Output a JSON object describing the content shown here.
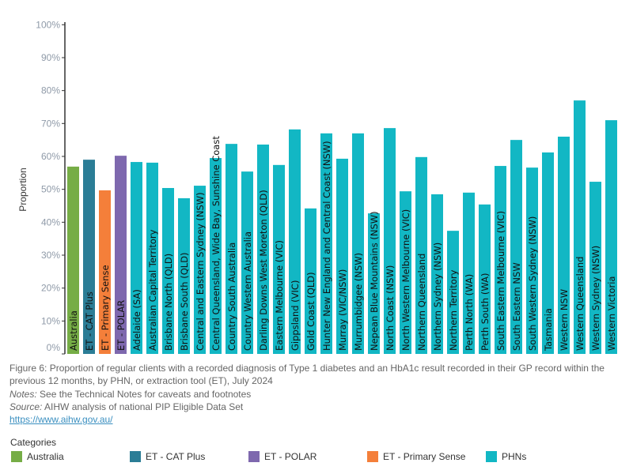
{
  "chart_data": {
    "type": "bar",
    "ylabel": "Proportion",
    "ylim": [
      0,
      100
    ],
    "yticks": [
      "0%",
      "10%",
      "20%",
      "30%",
      "40%",
      "50%",
      "60%",
      "70%",
      "80%",
      "90%",
      "100%"
    ],
    "grid": false,
    "legend_position": "bottom-left",
    "categories": [
      "Australia",
      "ET - CAT Plus",
      "ET - Primary Sense",
      "ET - POLAR",
      "Adelaide (SA)",
      "Australian Capital Territory",
      "Brisbane North (QLD)",
      "Brisbane South (QLD)",
      "Central and Eastern Sydney (NSW)",
      "Central Queensland, Wide Bay, Sunshine Coast",
      "Country South Australia",
      "Country Western Australia",
      "Darling Downs West Moreton (QLD)",
      "Eastern Melbourne (VIC)",
      "Gippsland (VIC)",
      "Gold Coast (QLD)",
      "Hunter New England and Central Coast (NSW)",
      "Murray (VIC/NSW)",
      "Murrumbidgee (NSW)",
      "Nepean Blue Mountains (NSW)",
      "North Coast (NSW)",
      "North Western Melbourne (VIC)",
      "Northern Queensland",
      "Northern Sydney (NSW)",
      "Northern Territory",
      "Perth North (WA)",
      "Perth South (WA)",
      "South Eastern Melbourne (VIC)",
      "South Eastern NSW",
      "South Western Sydney (NSW)",
      "Tasmania",
      "Western NSW",
      "Western Queensland",
      "Western Sydney (NSW)",
      "Western Victoria"
    ],
    "values": [
      56.9,
      59.0,
      49.7,
      60.2,
      58.3,
      58.1,
      50.4,
      47.3,
      51.1,
      59.5,
      63.8,
      55.4,
      63.6,
      57.4,
      68.2,
      44.2,
      67.0,
      59.3,
      67.0,
      42.7,
      68.6,
      49.4,
      59.8,
      48.5,
      37.4,
      49.0,
      45.4,
      57.1,
      65.0,
      56.6,
      61.2,
      66.0,
      77.0,
      52.3,
      71.0
    ],
    "groups": [
      "Australia",
      "ET - CAT Plus",
      "ET - Primary Sense",
      "ET - POLAR",
      "PHNs",
      "PHNs",
      "PHNs",
      "PHNs",
      "PHNs",
      "PHNs",
      "PHNs",
      "PHNs",
      "PHNs",
      "PHNs",
      "PHNs",
      "PHNs",
      "PHNs",
      "PHNs",
      "PHNs",
      "PHNs",
      "PHNs",
      "PHNs",
      "PHNs",
      "PHNs",
      "PHNs",
      "PHNs",
      "PHNs",
      "PHNs",
      "PHNs",
      "PHNs",
      "PHNs",
      "PHNs",
      "PHNs",
      "PHNs",
      "PHNs"
    ]
  },
  "colors": {
    "Australia": "#76ad46",
    "ET - CAT Plus": "#2b7d96",
    "ET - POLAR": "#7e68ae",
    "ET - Primary Sense": "#f47f3a",
    "PHNs": "#12b7c4"
  },
  "caption": {
    "figure": "Figure 6: Proportion of regular clients with a recorded diagnosis of Type 1 diabetes and an HbA1c result recorded in their GP record within the previous 12 months, by PHN, or extraction tool (ET), July 2024",
    "notes_label": "Notes:",
    "notes": " See the Technical Notes for caveats and footnotes",
    "source_label": "Source:",
    "source": " AIHW analysis of national PIP Eligible Data Set",
    "link": "https://www.aihw.gov.au/"
  },
  "legend": {
    "title": "Categories",
    "items": [
      "Australia",
      "ET - CAT Plus",
      "ET - POLAR",
      "ET - Primary Sense",
      "PHNs"
    ]
  }
}
